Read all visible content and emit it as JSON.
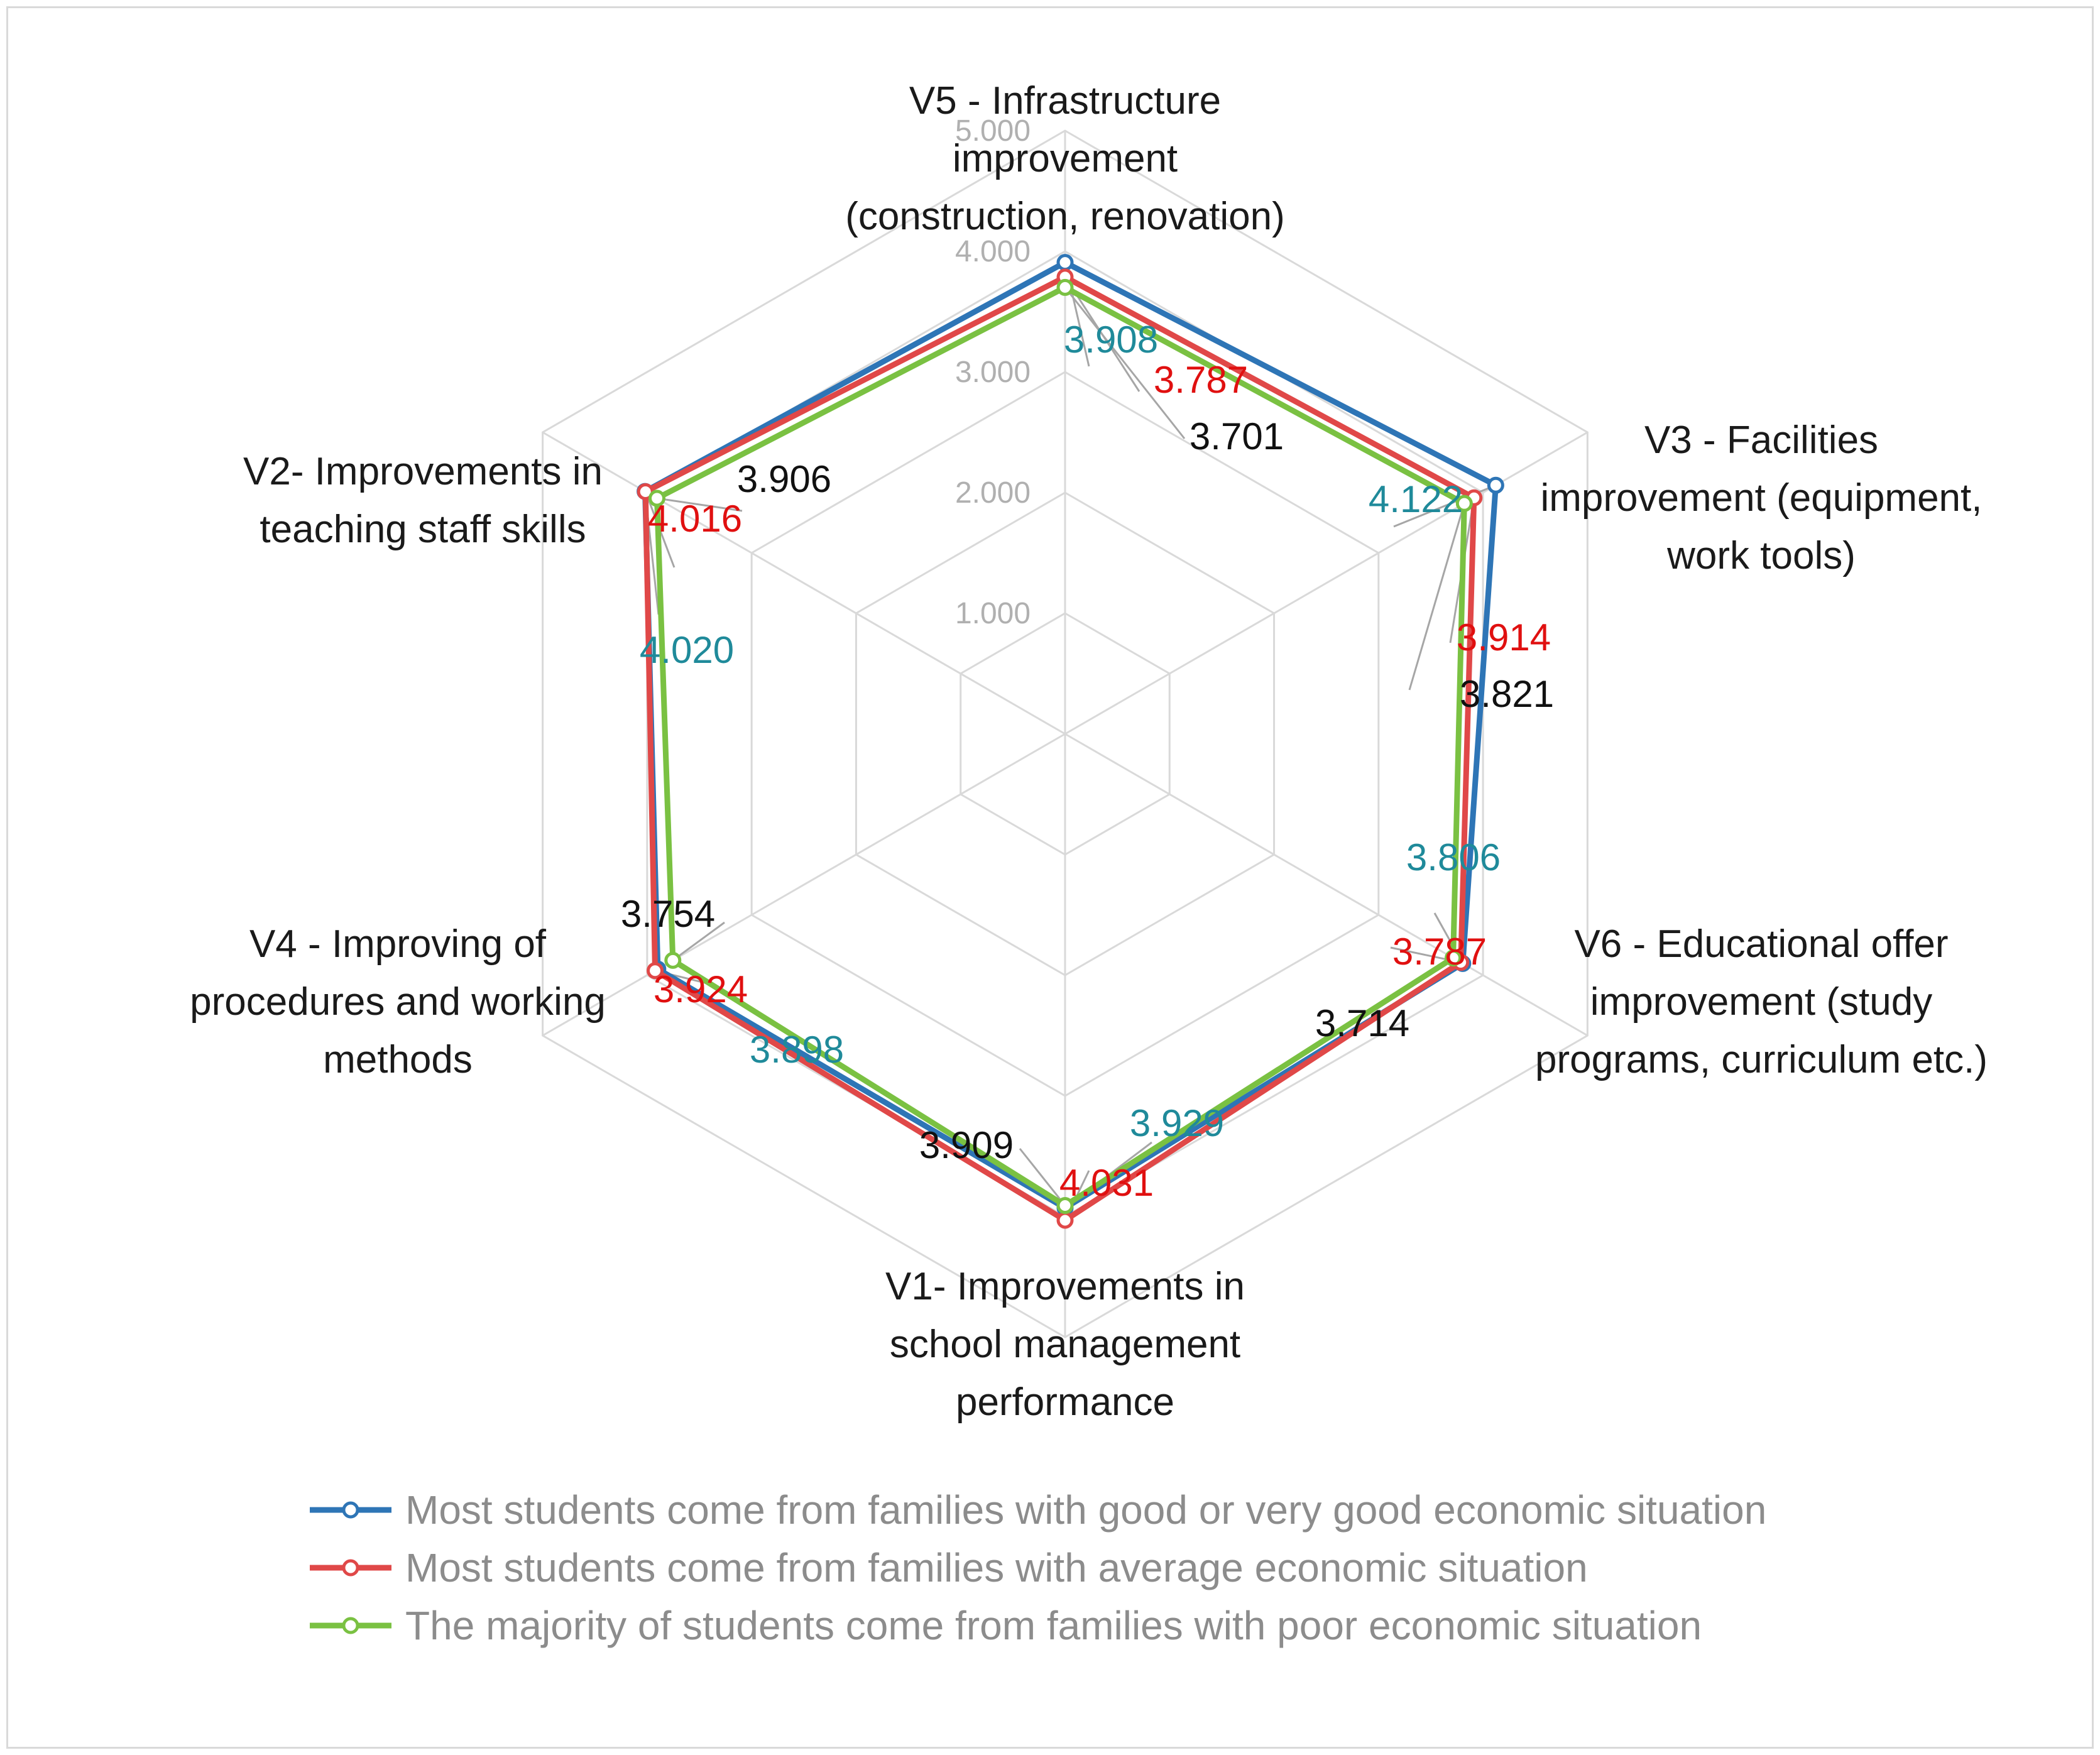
{
  "chart_data": {
    "type": "radar",
    "title": "",
    "axes": [
      {
        "id": "V5",
        "label_lines": [
          "V5 - Infrastructure",
          "improvement",
          "(construction, renovation)"
        ]
      },
      {
        "id": "V3",
        "label_lines": [
          "V3 - Facilities",
          "improvement (equipment,",
          "work tools)"
        ]
      },
      {
        "id": "V6",
        "label_lines": [
          "V6 - Educational offer",
          "improvement (study",
          "programs, curriculum etc.)"
        ]
      },
      {
        "id": "V1",
        "label_lines": [
          "V1- Improvements in",
          "school management",
          "performance"
        ]
      },
      {
        "id": "V4",
        "label_lines": [
          "V4 - Improving of",
          "procedures and working",
          "methods"
        ]
      },
      {
        "id": "V2",
        "label_lines": [
          "V2- Improvements in",
          "teaching staff skills"
        ]
      }
    ],
    "r_range": [
      0,
      5
    ],
    "ticks": [
      "1.000",
      "2.000",
      "3.000",
      "4.000",
      "5.000"
    ],
    "series": [
      {
        "name": "Most students come from families with good or very good economic situation",
        "color": "#2e75b6",
        "label_color": "#1f8a9a",
        "values": [
          3.908,
          4.122,
          3.806,
          3.929,
          3.898,
          4.02
        ],
        "labels": [
          "3.908",
          "4.122",
          "3.806",
          "3.929",
          "3.898",
          "4.020"
        ]
      },
      {
        "name": "Most students come from families with average economic situation",
        "color": "#e04848",
        "label_color": "#e01010",
        "values": [
          3.787,
          3.914,
          3.787,
          4.031,
          3.924,
          4.016
        ],
        "labels": [
          "3.787",
          "3.914",
          "3.787",
          "4.031",
          "3.924",
          "4.016"
        ]
      },
      {
        "name": "The majority of students come from families with poor economic situation",
        "color": "#7ac142",
        "label_color": "#111111",
        "values": [
          3.701,
          3.821,
          3.714,
          3.909,
          3.754,
          3.906
        ],
        "labels": [
          "3.701",
          "3.821",
          "3.714",
          "3.909",
          "3.754",
          "3.906"
        ]
      }
    ],
    "legend_position": "bottom",
    "grid": true
  }
}
